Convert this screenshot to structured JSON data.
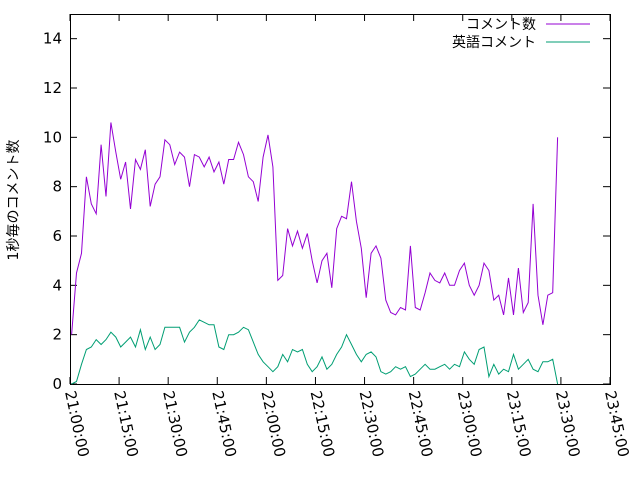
{
  "chart_data": {
    "type": "line",
    "title": "",
    "xlabel": "",
    "ylabel": "1秒毎のコメント数",
    "ylim": [
      0,
      15
    ],
    "yticks": [
      0,
      2,
      4,
      6,
      8,
      10,
      12,
      14
    ],
    "ytick_labels": [
      "0",
      "2",
      "4",
      "6",
      "8",
      "10",
      "12",
      "14"
    ],
    "xlim": [
      "21:00:00",
      "23:45:00"
    ],
    "xticks": [
      "21:00:00",
      "21:15:00",
      "21:30:00",
      "21:45:00",
      "22:00:00",
      "22:15:00",
      "22:30:00",
      "22:45:00",
      "23:00:00",
      "23:15:00",
      "23:30:00",
      "23:45:00"
    ],
    "grid": false,
    "legend_position": "top-right",
    "series": [
      {
        "name": "コメント数",
        "color": "#9400d3",
        "x": [
          "21:00:30",
          "21:02:00",
          "21:03:30",
          "21:05:00",
          "21:06:30",
          "21:08:00",
          "21:09:30",
          "21:11:00",
          "21:12:30",
          "21:14:00",
          "21:15:30",
          "21:17:00",
          "21:18:30",
          "21:20:00",
          "21:21:30",
          "21:23:00",
          "21:24:30",
          "21:26:00",
          "21:27:30",
          "21:29:00",
          "21:30:30",
          "21:32:00",
          "21:33:30",
          "21:35:00",
          "21:36:30",
          "21:38:00",
          "21:39:30",
          "21:41:00",
          "21:42:30",
          "21:44:00",
          "21:45:30",
          "21:47:00",
          "21:48:30",
          "21:50:00",
          "21:51:30",
          "21:53:00",
          "21:54:30",
          "21:56:00",
          "21:57:30",
          "21:59:00",
          "22:00:30",
          "22:02:00",
          "22:03:30",
          "22:05:00",
          "22:06:30",
          "22:08:00",
          "22:09:30",
          "22:11:00",
          "22:12:30",
          "22:14:00",
          "22:15:30",
          "22:17:00",
          "22:18:30",
          "22:20:00",
          "22:21:30",
          "22:23:00",
          "22:24:30",
          "22:26:00",
          "22:27:30",
          "22:29:00",
          "22:30:30",
          "22:32:00",
          "22:33:30",
          "22:35:00",
          "22:36:30",
          "22:38:00",
          "22:39:30",
          "22:41:00",
          "22:42:30",
          "22:44:00",
          "22:45:30",
          "22:47:00",
          "22:48:30",
          "22:50:00",
          "22:51:30",
          "22:53:00",
          "22:54:30",
          "22:56:00",
          "22:57:30",
          "22:59:00",
          "23:00:30",
          "23:02:00",
          "23:03:30",
          "23:05:00",
          "23:06:30",
          "23:08:00",
          "23:09:30",
          "23:11:00",
          "23:12:30",
          "23:14:00",
          "23:15:30",
          "23:17:00",
          "23:18:30",
          "23:20:00",
          "23:21:30",
          "23:23:00",
          "23:24:30",
          "23:26:00",
          "23:27:30",
          "23:29:00",
          "23:30:30",
          "23:32:00",
          "23:33:30",
          "23:35:00",
          "23:36:30",
          "23:38:00",
          "23:39:30",
          "23:41:00"
        ],
        "values": [
          2.0,
          4.5,
          5.3,
          8.4,
          7.3,
          6.9,
          9.7,
          7.6,
          10.6,
          9.4,
          8.3,
          9.0,
          7.1,
          9.1,
          8.7,
          9.5,
          7.2,
          8.1,
          8.4,
          9.9,
          9.7,
          8.9,
          9.4,
          9.2,
          8.0,
          9.3,
          9.2,
          8.8,
          9.2,
          8.6,
          9.0,
          8.1,
          9.1,
          9.1,
          9.8,
          9.3,
          8.4,
          8.2,
          7.4,
          9.2,
          10.1,
          8.8,
          4.2,
          4.4,
          6.3,
          5.6,
          6.2,
          5.5,
          6.1,
          5.0,
          4.1,
          5.0,
          5.3,
          3.9,
          6.3,
          6.8,
          6.7,
          8.2,
          6.6,
          5.5,
          3.5,
          5.3,
          5.6,
          5.1,
          3.4,
          2.9,
          2.8,
          3.1,
          3.0,
          5.6,
          3.1,
          3.0,
          3.7,
          4.5,
          4.2,
          4.1,
          4.5,
          4.0,
          4.0,
          4.6,
          4.9,
          4.0,
          3.6,
          4.0,
          4.9,
          4.6,
          3.4,
          3.6,
          2.8,
          4.3,
          2.8,
          4.7,
          2.9,
          3.3,
          7.3,
          3.6,
          2.4,
          3.6,
          3.7,
          10.0,
          0.0,
          0.0,
          0.0,
          0.0,
          0.0,
          0.0,
          0.0,
          0.0
        ]
      },
      {
        "name": "英語コメント",
        "color": "#009e73",
        "x": [
          "21:00:30",
          "21:02:00",
          "21:03:30",
          "21:05:00",
          "21:06:30",
          "21:08:00",
          "21:09:30",
          "21:11:00",
          "21:12:30",
          "21:14:00",
          "21:15:30",
          "21:17:00",
          "21:18:30",
          "21:20:00",
          "21:21:30",
          "21:23:00",
          "21:24:30",
          "21:26:00",
          "21:27:30",
          "21:29:00",
          "21:30:30",
          "21:32:00",
          "21:33:30",
          "21:35:00",
          "21:36:30",
          "21:38:00",
          "21:39:30",
          "21:41:00",
          "21:42:30",
          "21:44:00",
          "21:45:30",
          "21:47:00",
          "21:48:30",
          "21:50:00",
          "21:51:30",
          "21:53:00",
          "21:54:30",
          "21:56:00",
          "21:57:30",
          "21:59:00",
          "22:00:30",
          "22:02:00",
          "22:03:30",
          "22:05:00",
          "22:06:30",
          "22:08:00",
          "22:09:30",
          "22:11:00",
          "22:12:30",
          "22:14:00",
          "22:15:30",
          "22:17:00",
          "22:18:30",
          "22:20:00",
          "22:21:30",
          "22:23:00",
          "22:24:30",
          "22:26:00",
          "22:27:30",
          "22:29:00",
          "22:30:30",
          "22:32:00",
          "22:33:30",
          "22:35:00",
          "22:36:30",
          "22:38:00",
          "22:39:30",
          "22:41:00",
          "22:42:30",
          "22:44:00",
          "22:45:30",
          "22:47:00",
          "22:48:30",
          "22:50:00",
          "22:51:30",
          "22:53:00",
          "22:54:30",
          "22:56:00",
          "22:57:30",
          "22:59:00",
          "23:00:30",
          "23:02:00",
          "23:03:30",
          "23:05:00",
          "23:06:30",
          "23:08:00",
          "23:09:30",
          "23:11:00",
          "23:12:30",
          "23:14:00",
          "23:15:30",
          "23:17:00",
          "23:18:30",
          "23:20:00",
          "23:21:30",
          "23:23:00",
          "23:24:30",
          "23:26:00",
          "23:27:30",
          "23:29:00"
        ],
        "values": [
          0.0,
          0.1,
          0.8,
          1.4,
          1.5,
          1.8,
          1.6,
          1.8,
          2.1,
          1.9,
          1.5,
          1.7,
          1.9,
          1.5,
          2.2,
          1.4,
          1.9,
          1.4,
          1.6,
          2.3,
          2.3,
          2.3,
          2.3,
          1.7,
          2.1,
          2.3,
          2.6,
          2.5,
          2.4,
          2.4,
          1.5,
          1.4,
          2.0,
          2.0,
          2.1,
          2.3,
          2.2,
          1.7,
          1.2,
          0.9,
          0.7,
          0.5,
          0.7,
          1.2,
          0.9,
          1.4,
          1.3,
          1.4,
          0.8,
          0.5,
          0.7,
          1.1,
          0.6,
          0.8,
          1.2,
          1.5,
          2.0,
          1.6,
          1.2,
          0.9,
          1.2,
          1.3,
          1.1,
          0.5,
          0.4,
          0.5,
          0.7,
          0.6,
          0.7,
          0.3,
          0.4,
          0.6,
          0.8,
          0.6,
          0.6,
          0.7,
          0.8,
          0.6,
          0.8,
          0.7,
          1.3,
          1.0,
          0.8,
          1.4,
          1.5,
          0.3,
          0.8,
          0.4,
          0.6,
          0.5,
          1.2,
          0.6,
          0.8,
          1.0,
          0.6,
          0.5,
          0.9,
          0.9,
          1.0,
          0.0
        ]
      }
    ]
  }
}
